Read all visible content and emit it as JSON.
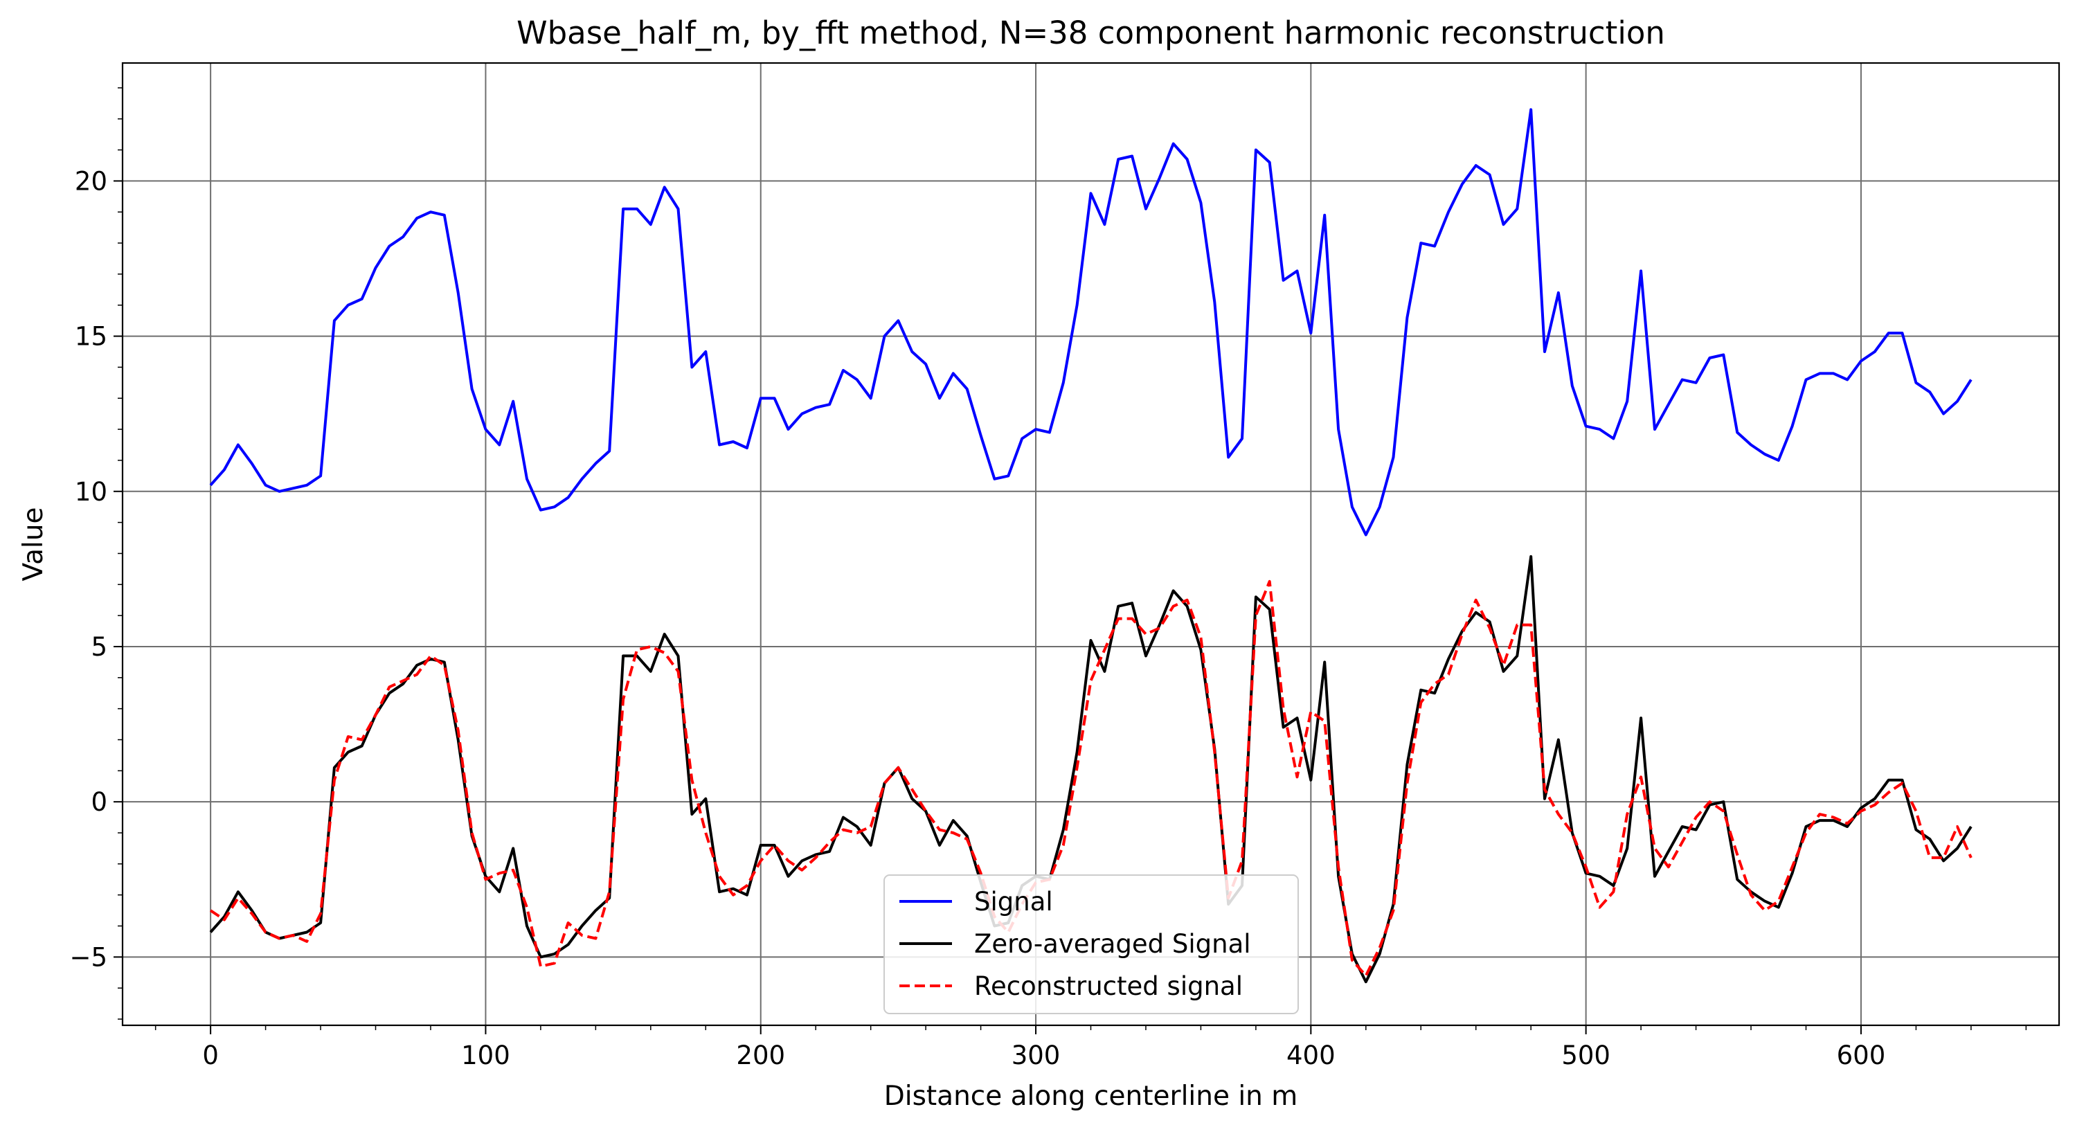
{
  "chart_data": {
    "type": "line",
    "title": "Wbase_half_m, by_fft method, N=38 component harmonic reconstruction",
    "xlabel": "Distance along centerline in m",
    "ylabel": "Value",
    "xlim": [
      -32,
      672
    ],
    "ylim": [
      -7.2,
      23.8
    ],
    "x_ticks": [
      0,
      100,
      200,
      300,
      400,
      500,
      600
    ],
    "y_ticks": [
      -5,
      0,
      5,
      10,
      15,
      20
    ],
    "grid": true,
    "legend_position": "lower center",
    "x": [
      0,
      5,
      10,
      15,
      20,
      25,
      30,
      35,
      40,
      45,
      50,
      55,
      60,
      65,
      70,
      75,
      80,
      85,
      90,
      95,
      100,
      105,
      110,
      115,
      120,
      125,
      130,
      135,
      140,
      145,
      150,
      155,
      160,
      165,
      170,
      175,
      180,
      185,
      190,
      195,
      200,
      205,
      210,
      215,
      220,
      225,
      230,
      235,
      240,
      245,
      250,
      255,
      260,
      265,
      270,
      275,
      280,
      285,
      290,
      295,
      300,
      305,
      310,
      315,
      320,
      325,
      330,
      335,
      340,
      345,
      350,
      355,
      360,
      365,
      370,
      375,
      380,
      385,
      390,
      395,
      400,
      405,
      410,
      415,
      420,
      425,
      430,
      435,
      440,
      445,
      450,
      455,
      460,
      465,
      470,
      475,
      480,
      485,
      490,
      495,
      500,
      505,
      510,
      515,
      520,
      525,
      530,
      535,
      540,
      545,
      550,
      555,
      560,
      565,
      570,
      575,
      580,
      585,
      590,
      595,
      600,
      605,
      610,
      615,
      620,
      625,
      630,
      635,
      640
    ],
    "series": [
      {
        "name": "Signal",
        "color": "#0000ff",
        "style": "solid",
        "values": [
          10.2,
          10.7,
          11.5,
          10.9,
          10.2,
          10.0,
          10.1,
          10.2,
          10.5,
          15.5,
          16.0,
          16.2,
          17.2,
          17.9,
          18.2,
          18.8,
          19.0,
          18.9,
          16.4,
          13.3,
          12.0,
          11.5,
          12.9,
          10.4,
          9.4,
          9.5,
          9.8,
          10.4,
          10.9,
          11.3,
          19.1,
          19.1,
          18.6,
          19.8,
          19.1,
          14.0,
          14.5,
          11.5,
          11.6,
          11.4,
          13.0,
          13.0,
          12.0,
          12.5,
          12.7,
          12.8,
          13.9,
          13.6,
          13.0,
          15.0,
          15.5,
          14.5,
          14.1,
          13.0,
          13.8,
          13.3,
          11.8,
          10.4,
          10.5,
          11.7,
          12.0,
          11.9,
          13.5,
          16.0,
          19.6,
          18.6,
          20.7,
          20.8,
          19.1,
          20.1,
          21.2,
          20.7,
          19.3,
          16.1,
          11.1,
          11.7,
          21.0,
          20.6,
          16.8,
          17.1,
          15.1,
          18.9,
          12.0,
          9.5,
          8.6,
          9.5,
          11.1,
          15.6,
          18.0,
          17.9,
          19.0,
          19.9,
          20.5,
          20.2,
          18.6,
          19.1,
          22.3,
          14.5,
          16.4,
          13.4,
          12.1,
          12.0,
          11.7,
          12.9,
          17.1,
          12.0,
          12.8,
          13.6,
          13.5,
          14.3,
          14.4,
          11.9,
          11.5,
          11.2,
          11.0,
          12.1,
          13.6,
          13.8,
          13.8,
          13.6,
          14.2,
          14.5,
          15.1,
          15.1,
          13.5,
          13.2,
          12.5,
          12.9,
          13.6
        ]
      },
      {
        "name": "Zero-averaged Signal",
        "color": "#000000",
        "style": "solid",
        "values": [
          -4.2,
          -3.7,
          -2.9,
          -3.5,
          -4.2,
          -4.4,
          -4.3,
          -4.2,
          -3.9,
          1.1,
          1.6,
          1.8,
          2.8,
          3.5,
          3.8,
          4.4,
          4.6,
          4.5,
          2.0,
          -1.1,
          -2.4,
          -2.9,
          -1.5,
          -4.0,
          -5.0,
          -4.9,
          -4.6,
          -4.0,
          -3.5,
          -3.1,
          4.7,
          4.7,
          4.2,
          5.4,
          4.7,
          -0.4,
          0.1,
          -2.9,
          -2.8,
          -3.0,
          -1.4,
          -1.4,
          -2.4,
          -1.9,
          -1.7,
          -1.6,
          -0.5,
          -0.8,
          -1.4,
          0.6,
          1.1,
          0.1,
          -0.3,
          -1.4,
          -0.6,
          -1.1,
          -2.6,
          -4.0,
          -3.9,
          -2.7,
          -2.4,
          -2.5,
          -0.9,
          1.6,
          5.2,
          4.2,
          6.3,
          6.4,
          4.7,
          5.7,
          6.8,
          6.3,
          4.9,
          1.7,
          -3.3,
          -2.7,
          6.6,
          6.2,
          2.4,
          2.7,
          0.7,
          4.5,
          -2.4,
          -4.9,
          -5.8,
          -4.9,
          -3.3,
          1.2,
          3.6,
          3.5,
          4.6,
          5.5,
          6.1,
          5.8,
          4.2,
          4.7,
          7.9,
          0.1,
          2.0,
          -1.0,
          -2.3,
          -2.4,
          -2.7,
          -1.5,
          2.7,
          -2.4,
          -1.6,
          -0.8,
          -0.9,
          -0.1,
          0.0,
          -2.5,
          -2.9,
          -3.2,
          -3.4,
          -2.3,
          -0.8,
          -0.6,
          -0.6,
          -0.8,
          -0.2,
          0.1,
          0.7,
          0.7,
          -0.9,
          -1.2,
          -1.9,
          -1.5,
          -0.8
        ]
      },
      {
        "name": "Reconstructed signal",
        "color": "#ff0000",
        "style": "dashed",
        "values": [
          -3.5,
          -3.8,
          -3.1,
          -3.6,
          -4.2,
          -4.4,
          -4.3,
          -4.5,
          -3.6,
          0.7,
          2.1,
          2.0,
          2.8,
          3.7,
          3.9,
          4.1,
          4.7,
          4.4,
          2.3,
          -1.0,
          -2.5,
          -2.3,
          -2.2,
          -3.4,
          -5.3,
          -5.2,
          -3.9,
          -4.3,
          -4.4,
          -2.9,
          3.3,
          4.9,
          5.0,
          4.8,
          4.2,
          0.7,
          -1.0,
          -2.4,
          -3.0,
          -2.7,
          -1.9,
          -1.4,
          -1.9,
          -2.2,
          -1.8,
          -1.3,
          -0.9,
          -1.0,
          -0.8,
          0.6,
          1.1,
          0.4,
          -0.3,
          -0.9,
          -1.0,
          -1.2,
          -2.3,
          -3.7,
          -4.2,
          -3.3,
          -2.6,
          -2.5,
          -1.4,
          1.1,
          3.9,
          4.9,
          5.9,
          5.9,
          5.4,
          5.6,
          6.3,
          6.5,
          5.3,
          1.6,
          -3.1,
          -1.9,
          6.0,
          7.1,
          3.0,
          0.8,
          2.9,
          2.6,
          -2.1,
          -5.1,
          -5.6,
          -4.7,
          -3.5,
          0.6,
          3.2,
          3.8,
          4.1,
          5.4,
          6.5,
          5.6,
          4.4,
          5.7,
          5.7,
          0.4,
          -0.4,
          -1.0,
          -2.1,
          -3.4,
          -2.9,
          -0.4,
          0.8,
          -1.5,
          -2.1,
          -1.3,
          -0.5,
          0.0,
          -0.3,
          -1.7,
          -3.0,
          -3.5,
          -3.2,
          -2.1,
          -1.0,
          -0.4,
          -0.5,
          -0.7,
          -0.3,
          -0.1,
          0.3,
          0.6,
          -0.3,
          -1.8,
          -1.8,
          -0.8,
          -1.8
        ]
      }
    ]
  }
}
